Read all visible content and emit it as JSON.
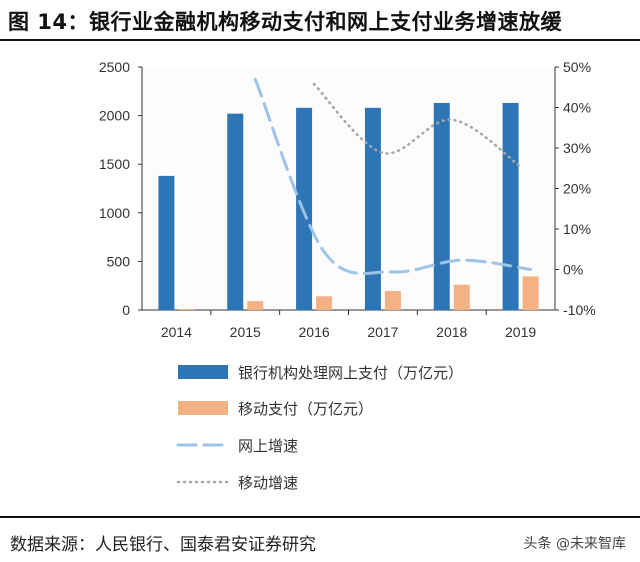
{
  "title": "图 14：银行业金融机构移动支付和网上支付业务增速放缓",
  "source": "数据来源：人民银行、国泰君安证券研究",
  "watermark": "头条 @未来智库",
  "chart_data": {
    "type": "bar",
    "categories": [
      "2014",
      "2015",
      "2016",
      "2017",
      "2018",
      "2019"
    ],
    "y_left": {
      "range": [
        0,
        2500
      ],
      "ticks": [
        "0",
        "500",
        "1000",
        "1500",
        "2000",
        "2500"
      ]
    },
    "y_right": {
      "range": [
        -10,
        50
      ],
      "ticks": [
        "-10%",
        "0%",
        "10%",
        "20%",
        "30%",
        "40%",
        "50%"
      ]
    },
    "grid": false,
    "legend_placement": "bottom",
    "series": [
      {
        "name": "银行机构处理网上支付（万亿元）",
        "kind": "bar",
        "axis": "left",
        "color": "#2E75B6",
        "values": [
          1380,
          2020,
          2080,
          2080,
          2130,
          2130
        ]
      },
      {
        "name": "移动支付（万亿元）",
        "kind": "bar",
        "axis": "left",
        "color": "#F4B183",
        "values": [
          10,
          92,
          141,
          195,
          260,
          346
        ]
      },
      {
        "name": "网上增速",
        "kind": "line",
        "style": "dashed",
        "axis": "right",
        "color": "#9DC3E6",
        "values": [
          null,
          47,
          4.4,
          -0.6,
          2.3,
          0
        ]
      },
      {
        "name": "移动增速",
        "kind": "line",
        "style": "dotted",
        "axis": "right",
        "color": "#A6A6A6",
        "values": [
          null,
          null,
          45.8,
          28.8,
          37,
          25.4
        ]
      }
    ]
  }
}
